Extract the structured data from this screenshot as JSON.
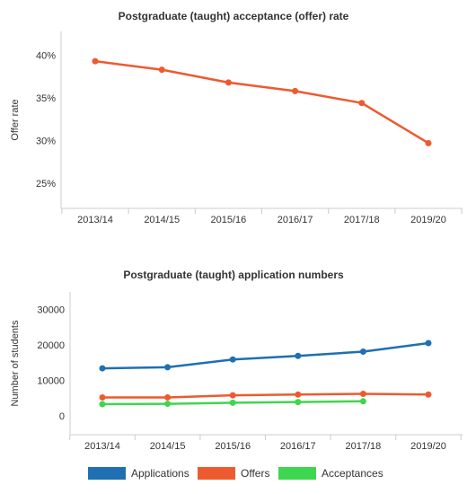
{
  "chart_data": [
    {
      "type": "line",
      "title": "Postgraduate (taught) acceptance (offer) rate",
      "xlabel": "",
      "ylabel": "Offer rate",
      "categories": [
        "2013/14",
        "2014/15",
        "2015/16",
        "2016/17",
        "2017/18",
        "2019/20"
      ],
      "yticks": [
        "25%",
        "30%",
        "35%",
        "40%"
      ],
      "ytick_values": [
        25,
        30,
        35,
        40
      ],
      "ylim": [
        21.5,
        42.5
      ],
      "grid": false,
      "series": [
        {
          "values": [
            39.3,
            38.3,
            36.8,
            35.8,
            34.4,
            29.7
          ],
          "color": "#ed5a2f"
        }
      ]
    },
    {
      "type": "line",
      "title": "Postgraduate (taught) application numbers",
      "xlabel": "",
      "ylabel": "Number of students",
      "categories": [
        "2013/14",
        "2014/15",
        "2015/16",
        "2016/17",
        "2017/18",
        "2019/20"
      ],
      "yticks": [
        "0",
        "10000",
        "20000",
        "30000"
      ],
      "ytick_values": [
        0,
        10000,
        20000,
        30000
      ],
      "ylim": [
        -5000,
        35000
      ],
      "grid": false,
      "legend": "bottom",
      "series": [
        {
          "name": "Applications",
          "color": "#1f6fb2",
          "values": [
            13400,
            13700,
            15900,
            16900,
            18100,
            20500
          ]
        },
        {
          "name": "Offers",
          "color": "#ed5a2f",
          "values": [
            5200,
            5200,
            5800,
            6000,
            6200,
            6000
          ]
        },
        {
          "name": "Acceptances",
          "color": "#3fd64f",
          "values": [
            3300,
            3400,
            3700,
            3900,
            4100,
            null
          ]
        }
      ]
    }
  ]
}
